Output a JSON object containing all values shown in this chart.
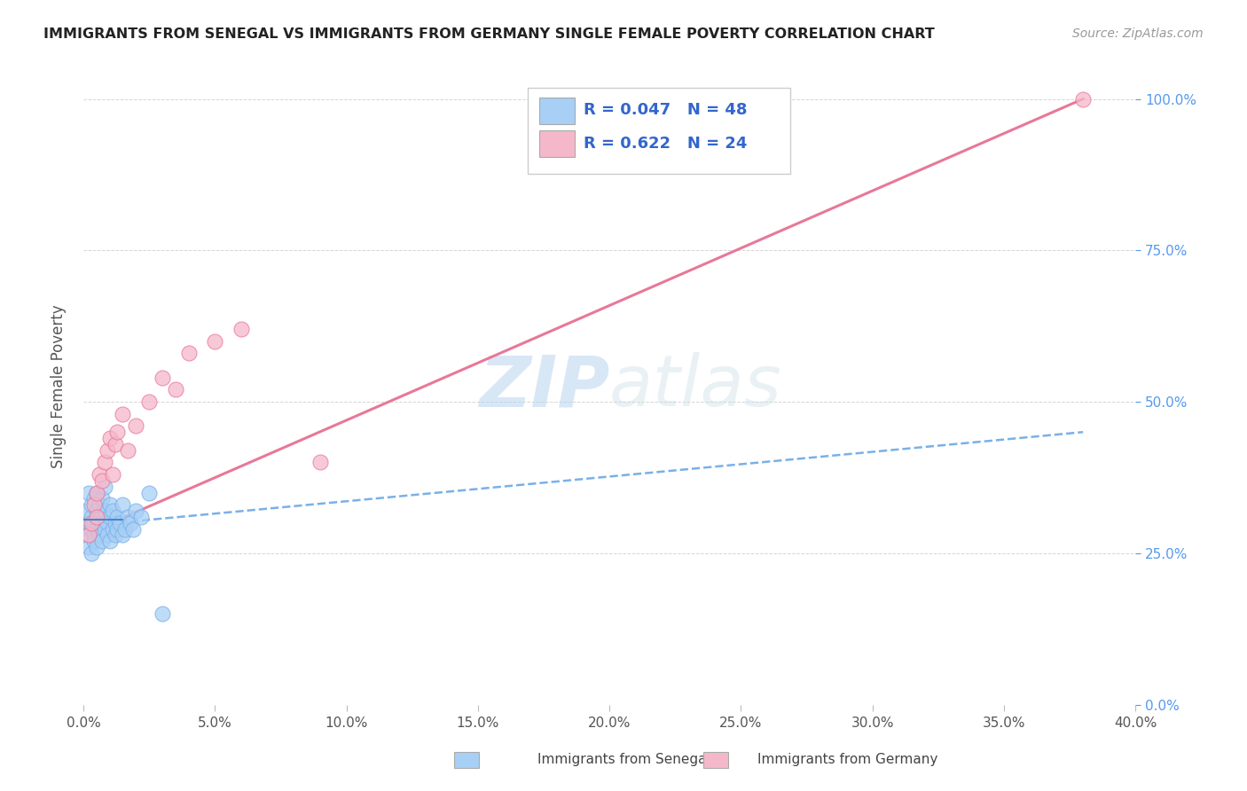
{
  "title": "IMMIGRANTS FROM SENEGAL VS IMMIGRANTS FROM GERMANY SINGLE FEMALE POVERTY CORRELATION CHART",
  "source_text": "Source: ZipAtlas.com",
  "ylabel": "Single Female Poverty",
  "xlim": [
    0.0,
    0.4
  ],
  "ylim": [
    0.0,
    1.05
  ],
  "xtick_labels": [
    "0.0%",
    "5.0%",
    "10.0%",
    "15.0%",
    "20.0%",
    "25.0%",
    "30.0%",
    "35.0%",
    "40.0%"
  ],
  "xtick_vals": [
    0.0,
    0.05,
    0.1,
    0.15,
    0.2,
    0.25,
    0.3,
    0.35,
    0.4
  ],
  "ytick_labels_right": [
    "0.0%",
    "25.0%",
    "50.0%",
    "75.0%",
    "100.0%"
  ],
  "ytick_vals": [
    0.0,
    0.25,
    0.5,
    0.75,
    1.0
  ],
  "senegal_color": "#a8cff5",
  "senegal_edge": "#7ab0e8",
  "germany_color": "#f5b8cb",
  "germany_edge": "#e87898",
  "trend_senegal_color": "#7ab0e8",
  "trend_germany_color": "#e87898",
  "R_senegal": 0.047,
  "N_senegal": 48,
  "R_germany": 0.622,
  "N_germany": 24,
  "watermark_zip": "ZIP",
  "watermark_atlas": "atlas",
  "legend_R_color": "#3366cc",
  "senegal_x": [
    0.001,
    0.001,
    0.002,
    0.002,
    0.002,
    0.003,
    0.003,
    0.003,
    0.003,
    0.004,
    0.004,
    0.004,
    0.004,
    0.005,
    0.005,
    0.005,
    0.005,
    0.006,
    0.006,
    0.006,
    0.007,
    0.007,
    0.007,
    0.008,
    0.008,
    0.008,
    0.009,
    0.009,
    0.01,
    0.01,
    0.01,
    0.011,
    0.011,
    0.012,
    0.012,
    0.013,
    0.013,
    0.014,
    0.015,
    0.015,
    0.016,
    0.017,
    0.018,
    0.019,
    0.02,
    0.022,
    0.025,
    0.03
  ],
  "senegal_y": [
    0.28,
    0.32,
    0.3,
    0.26,
    0.35,
    0.29,
    0.31,
    0.25,
    0.33,
    0.28,
    0.3,
    0.27,
    0.34,
    0.29,
    0.32,
    0.26,
    0.35,
    0.31,
    0.28,
    0.33,
    0.3,
    0.27,
    0.34,
    0.29,
    0.32,
    0.36,
    0.3,
    0.28,
    0.33,
    0.31,
    0.27,
    0.29,
    0.32,
    0.3,
    0.28,
    0.29,
    0.31,
    0.3,
    0.28,
    0.33,
    0.29,
    0.31,
    0.3,
    0.29,
    0.32,
    0.31,
    0.35,
    0.15
  ],
  "germany_x": [
    0.002,
    0.003,
    0.004,
    0.005,
    0.005,
    0.006,
    0.007,
    0.008,
    0.009,
    0.01,
    0.011,
    0.012,
    0.013,
    0.015,
    0.017,
    0.02,
    0.025,
    0.03,
    0.035,
    0.04,
    0.05,
    0.06,
    0.09,
    0.38
  ],
  "germany_y": [
    0.28,
    0.3,
    0.33,
    0.31,
    0.35,
    0.38,
    0.37,
    0.4,
    0.42,
    0.44,
    0.38,
    0.43,
    0.45,
    0.48,
    0.42,
    0.46,
    0.5,
    0.54,
    0.52,
    0.58,
    0.6,
    0.62,
    0.4,
    1.0
  ],
  "trend_germany_x0": 0.0,
  "trend_germany_y0": 0.28,
  "trend_germany_x1": 0.38,
  "trend_germany_y1": 1.0,
  "trend_senegal_x0": 0.0,
  "trend_senegal_y0": 0.295,
  "trend_senegal_x1": 0.38,
  "trend_senegal_y1": 0.45
}
